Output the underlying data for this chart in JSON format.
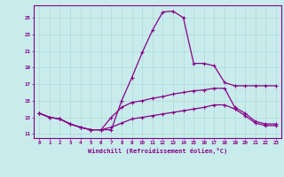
{
  "title": "",
  "xlabel": "Windchill (Refroidissement éolien,°C)",
  "ylabel": "",
  "bg_color": "#c8ecec",
  "grid_color": "#b0d8d8",
  "line_color": "#880088",
  "xlim": [
    -0.5,
    23.5
  ],
  "ylim": [
    10.5,
    26.5
  ],
  "yticks": [
    11,
    13,
    15,
    17,
    19,
    21,
    23,
    25
  ],
  "xticks": [
    0,
    1,
    2,
    3,
    4,
    5,
    6,
    7,
    8,
    9,
    10,
    11,
    12,
    13,
    14,
    15,
    16,
    17,
    18,
    19,
    20,
    21,
    22,
    23
  ],
  "line1_x": [
    0,
    1,
    2,
    3,
    4,
    5,
    6,
    7,
    8,
    9,
    10,
    11,
    12,
    13,
    14,
    15,
    16,
    17,
    18,
    19,
    20,
    21,
    22,
    23
  ],
  "line1_y": [
    13.5,
    13.0,
    12.8,
    12.2,
    11.8,
    11.5,
    11.5,
    11.5,
    15.0,
    17.8,
    20.8,
    23.5,
    25.7,
    25.8,
    25.0,
    19.5,
    19.5,
    19.2,
    17.2,
    16.8,
    16.8,
    16.8,
    16.8,
    16.8
  ],
  "line2_x": [
    0,
    1,
    2,
    3,
    4,
    5,
    6,
    7,
    8,
    9,
    10,
    11,
    12,
    13,
    14,
    15,
    16,
    17,
    18,
    19,
    20,
    21,
    22,
    23
  ],
  "line2_y": [
    13.5,
    13.0,
    12.8,
    12.2,
    11.8,
    11.5,
    11.5,
    13.0,
    14.2,
    14.8,
    15.0,
    15.3,
    15.5,
    15.8,
    16.0,
    16.2,
    16.3,
    16.5,
    16.5,
    14.2,
    13.5,
    12.5,
    12.2,
    12.2
  ],
  "line3_x": [
    0,
    1,
    2,
    3,
    4,
    5,
    6,
    7,
    8,
    9,
    10,
    11,
    12,
    13,
    14,
    15,
    16,
    17,
    18,
    19,
    20,
    21,
    22,
    23
  ],
  "line3_y": [
    13.5,
    13.0,
    12.8,
    12.2,
    11.8,
    11.5,
    11.5,
    11.8,
    12.3,
    12.8,
    13.0,
    13.2,
    13.4,
    13.6,
    13.8,
    14.0,
    14.2,
    14.5,
    14.5,
    14.0,
    13.2,
    12.3,
    12.0,
    12.0
  ]
}
